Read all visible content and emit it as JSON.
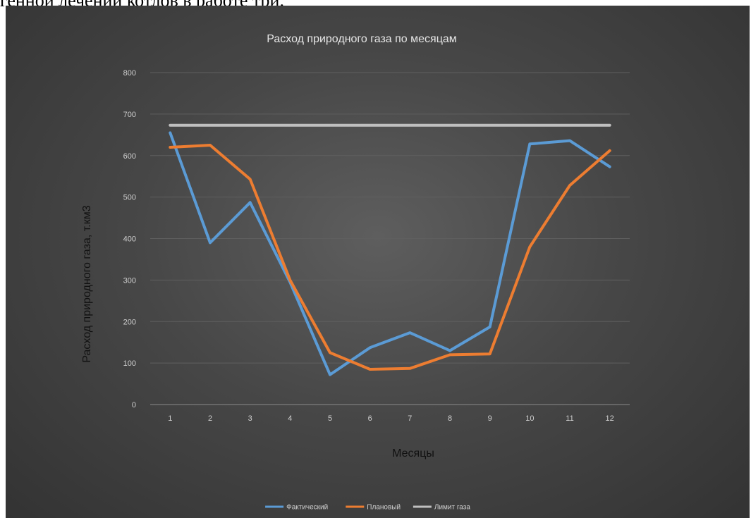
{
  "page": {
    "top_caption": "генной лечении котлов в работе три."
  },
  "chart_data": {
    "type": "line",
    "title": "Расход природного газа по месяцам",
    "xlabel": "Месяцы",
    "ylabel": "Расход природного газа, т.км3",
    "categories": [
      "1",
      "2",
      "3",
      "4",
      "5",
      "6",
      "7",
      "8",
      "9",
      "10",
      "11",
      "12"
    ],
    "ylim": [
      0,
      800
    ],
    "yticks": [
      0,
      100,
      200,
      300,
      400,
      500,
      600,
      700,
      800
    ],
    "grid": true,
    "legend_position": "bottom",
    "series": [
      {
        "name": "Фактический",
        "color": "#5b9bd5",
        "values": [
          655,
          390,
          487,
          295,
          72,
          137,
          173,
          130,
          187,
          628,
          636,
          573
        ]
      },
      {
        "name": "Плановый",
        "color": "#ed7d31",
        "values": [
          620,
          625,
          543,
          300,
          125,
          85,
          87,
          120,
          122,
          380,
          528,
          612
        ]
      },
      {
        "name": "Лимит газа",
        "color": "#bfbfbf",
        "values": [
          673,
          673,
          673,
          673,
          673,
          673,
          673,
          673,
          673,
          673,
          673,
          673
        ]
      }
    ]
  }
}
